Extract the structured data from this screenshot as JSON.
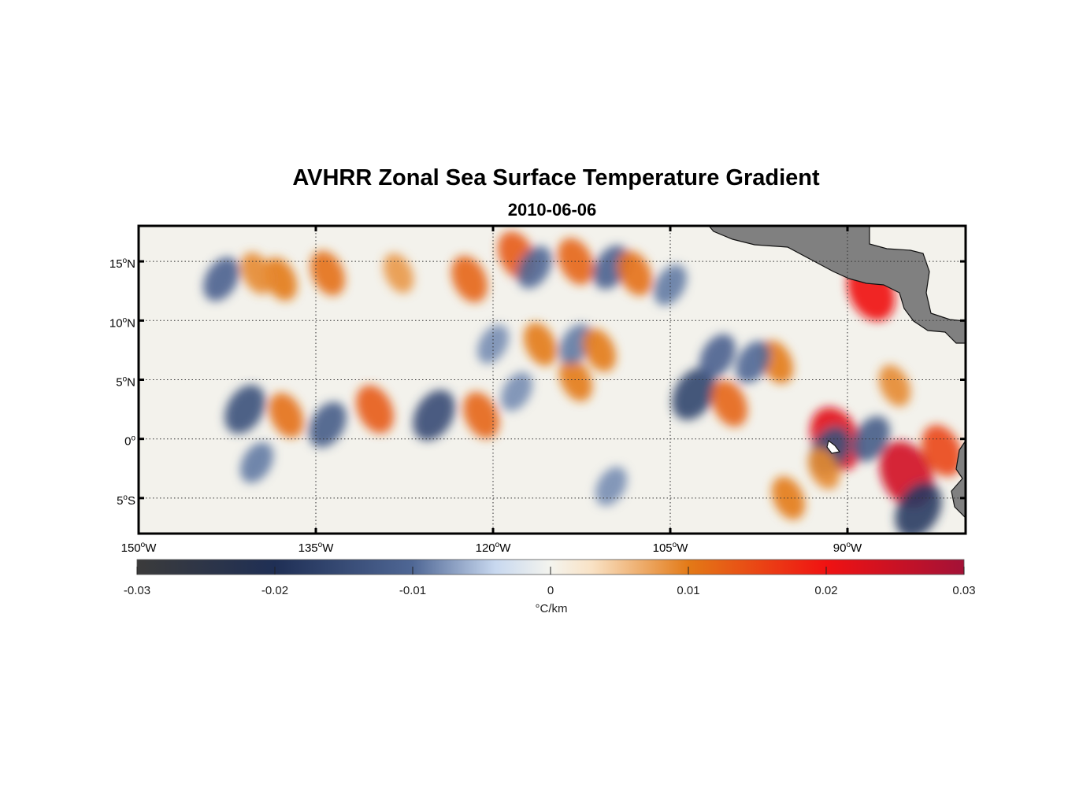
{
  "title": "AVHRR Zonal Sea Surface Temperature Gradient",
  "subtitle": "2010-06-06",
  "map": {
    "lon_range": [
      -150,
      -80
    ],
    "lat_range": [
      -8,
      18
    ],
    "lon_ticks": [
      {
        "value": -150,
        "deg": "150",
        "hemi": "W"
      },
      {
        "value": -135,
        "deg": "135",
        "hemi": "W"
      },
      {
        "value": -120,
        "deg": "120",
        "hemi": "W"
      },
      {
        "value": -105,
        "deg": "105",
        "hemi": "W"
      },
      {
        "value": -90,
        "deg": "90",
        "hemi": "W"
      }
    ],
    "lat_ticks": [
      {
        "value": 15,
        "deg": "15",
        "hemi": "N"
      },
      {
        "value": 10,
        "deg": "10",
        "hemi": "N"
      },
      {
        "value": 5,
        "deg": "5",
        "hemi": "N"
      },
      {
        "value": 0,
        "deg": "0",
        "hemi": ""
      },
      {
        "value": -5,
        "deg": "5",
        "hemi": "S"
      }
    ],
    "grid": true,
    "grid_style": "dotted",
    "land_color": "#808080",
    "features": [
      {
        "lon": -141,
        "lat": 2.5,
        "v": -0.014
      },
      {
        "lon": -137.5,
        "lat": 2.0,
        "v": 0.011
      },
      {
        "lon": -134,
        "lat": 1.2,
        "v": -0.012
      },
      {
        "lon": -130,
        "lat": 2.5,
        "v": 0.013
      },
      {
        "lon": -125,
        "lat": 2.0,
        "v": -0.015
      },
      {
        "lon": -121,
        "lat": 2.0,
        "v": 0.012
      },
      {
        "lon": -118,
        "lat": 4.0,
        "v": -0.008
      },
      {
        "lon": -113,
        "lat": 5.0,
        "v": 0.01
      },
      {
        "lon": -103,
        "lat": 3.8,
        "v": -0.016
      },
      {
        "lon": -100,
        "lat": 3.0,
        "v": 0.012
      },
      {
        "lon": -96,
        "lat": 6.5,
        "v": 0.01
      },
      {
        "lon": -91,
        "lat": 0.0,
        "v": 0.022
      },
      {
        "lon": -91.5,
        "lat": -1.0,
        "v": -0.014
      },
      {
        "lon": -92,
        "lat": -2.5,
        "v": 0.009
      },
      {
        "lon": -85,
        "lat": -3.0,
        "v": 0.024
      },
      {
        "lon": -84,
        "lat": -6.0,
        "v": -0.018
      },
      {
        "lon": -82,
        "lat": -1.0,
        "v": 0.015
      },
      {
        "lon": -118,
        "lat": 15.5,
        "v": 0.013
      },
      {
        "lon": -116.5,
        "lat": 14.5,
        "v": -0.01
      },
      {
        "lon": -113,
        "lat": 15.0,
        "v": 0.012
      },
      {
        "lon": -110,
        "lat": 14.5,
        "v": -0.011
      },
      {
        "lon": -108,
        "lat": 14.0,
        "v": 0.011
      },
      {
        "lon": -105,
        "lat": 13.0,
        "v": -0.009
      },
      {
        "lon": -143,
        "lat": 13.5,
        "v": -0.011
      },
      {
        "lon": -138,
        "lat": 13.5,
        "v": 0.01
      },
      {
        "lon": -134,
        "lat": 14.0,
        "v": 0.011
      },
      {
        "lon": -140,
        "lat": 14.0,
        "v": 0.009
      },
      {
        "lon": -128,
        "lat": 14.0,
        "v": 0.008
      },
      {
        "lon": -122,
        "lat": 13.5,
        "v": 0.012
      },
      {
        "lon": -120,
        "lat": 8.0,
        "v": -0.008
      },
      {
        "lon": -116,
        "lat": 8.0,
        "v": 0.01
      },
      {
        "lon": -113,
        "lat": 8.0,
        "v": -0.009
      },
      {
        "lon": -111,
        "lat": 7.5,
        "v": 0.01
      },
      {
        "lon": -101,
        "lat": 7.0,
        "v": -0.011
      },
      {
        "lon": -98,
        "lat": 6.5,
        "v": -0.01
      },
      {
        "lon": -88,
        "lat": 12.5,
        "v": 0.02
      },
      {
        "lon": -86,
        "lat": 4.5,
        "v": 0.009
      },
      {
        "lon": -88,
        "lat": 0.0,
        "v": -0.012
      },
      {
        "lon": -95,
        "lat": -5.0,
        "v": 0.01
      },
      {
        "lon": -140,
        "lat": -2.0,
        "v": -0.009
      },
      {
        "lon": -110,
        "lat": -4.0,
        "v": -0.008
      }
    ]
  },
  "colorbar": {
    "min": -0.03,
    "max": 0.03,
    "ticks": [
      "-0.03",
      "-0.02",
      "-0.01",
      "0",
      "0.01",
      "0.02",
      "0.03"
    ],
    "tick_values": [
      -0.03,
      -0.02,
      -0.01,
      0,
      0.01,
      0.02,
      0.03
    ],
    "units_label": "°C/km",
    "stops": [
      {
        "v": -0.03,
        "color": "#3b3b3b"
      },
      {
        "v": -0.02,
        "color": "#1f2f55"
      },
      {
        "v": -0.01,
        "color": "#4f6795"
      },
      {
        "v": -0.004,
        "color": "#c8d8ef"
      },
      {
        "v": 0.0,
        "color": "#f4f4ee"
      },
      {
        "v": 0.003,
        "color": "#f9e2c5"
      },
      {
        "v": 0.01,
        "color": "#e37a17"
      },
      {
        "v": 0.02,
        "color": "#f01212"
      },
      {
        "v": 0.03,
        "color": "#a31237"
      }
    ]
  }
}
